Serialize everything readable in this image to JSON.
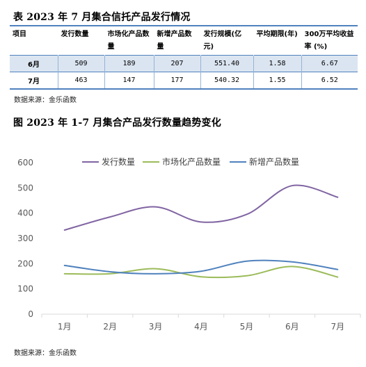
{
  "table": {
    "title": "表 2023 年 7 月集合信托产品发行情况",
    "headers": [
      "项目",
      "发行数量",
      "市场化产品数量",
      "新增产品数量",
      "发行规模(亿元)",
      "平均期限(年)",
      "300万平均收益率 (%)"
    ],
    "rows": [
      [
        "6月",
        "509",
        "189",
        "207",
        "551.40",
        "1.58",
        "6.67"
      ],
      [
        "7月",
        "463",
        "147",
        "177",
        "540.32",
        "1.55",
        "6.52"
      ]
    ],
    "source": "数据来源：金乐函数",
    "colors": {
      "border": "#4f81bd",
      "highlight_row": "#dbe5f1"
    }
  },
  "chart": {
    "title": "图 2023 年 1-7 月集合产品发行数量趋势变化",
    "source": "数据来源：金乐函数"
  },
  "chart_data": {
    "type": "line",
    "smooth": true,
    "categories": [
      "1月",
      "2月",
      "3月",
      "4月",
      "5月",
      "6月",
      "7月"
    ],
    "series": [
      {
        "name": "发行数量",
        "values": [
          333,
          385,
          425,
          365,
          395,
          509,
          463
        ],
        "color": "#8064a2"
      },
      {
        "name": "市场化产品数量",
        "values": [
          160,
          160,
          180,
          148,
          152,
          189,
          147
        ],
        "color": "#9bbb59"
      },
      {
        "name": "新增产品数量",
        "values": [
          193,
          168,
          160,
          170,
          210,
          207,
          177
        ],
        "color": "#4f81bd"
      }
    ],
    "yticks": [
      0,
      100,
      200,
      300,
      400,
      500,
      600
    ],
    "ylim": [
      0,
      600
    ],
    "grid": false,
    "legend_position": "top"
  }
}
